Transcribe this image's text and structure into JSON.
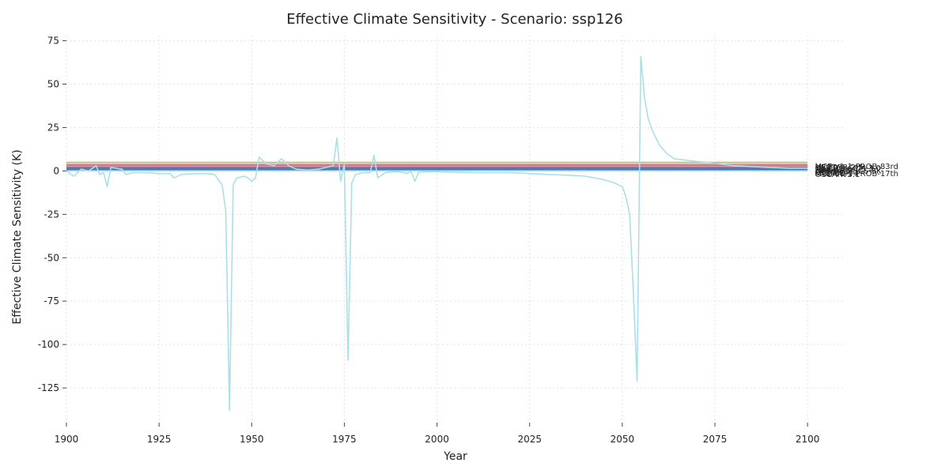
{
  "chart_data": {
    "type": "line",
    "title": "Effective Climate Sensitivity - Scenario: ssp126",
    "xlabel": "Year",
    "ylabel": "Effective Climate Sensitivity (K)",
    "xlim": [
      1900,
      2110
    ],
    "ylim": [
      -145,
      78
    ],
    "x_ticks": [
      1900,
      1925,
      1950,
      1975,
      2000,
      2025,
      2050,
      2075,
      2100
    ],
    "y_ticks": [
      75,
      50,
      25,
      0,
      -25,
      -50,
      -75,
      -100,
      -125
    ],
    "grid": true,
    "legend": "none",
    "series": [
      {
        "name": "MCE-v1-1-PROB-83rd",
        "color": "#c9b458",
        "x": [
          1900,
          2100
        ],
        "y": [
          4.9,
          4.9
        ]
      },
      {
        "name": "",
        "color": "#e07a5f",
        "x": [
          1900,
          2100
        ],
        "y": [
          3.8,
          3.8
        ]
      },
      {
        "name": "",
        "color": "#d48fb0",
        "x": [
          1900,
          2100
        ],
        "y": [
          3.3,
          3.3
        ]
      },
      {
        "name": "",
        "color": "#9b6bb3",
        "x": [
          1900,
          2100
        ],
        "y": [
          2.8,
          2.8
        ]
      },
      {
        "name": "",
        "color": "#e8a0a0",
        "x": [
          1900,
          2100
        ],
        "y": [
          2.4,
          2.4
        ]
      },
      {
        "name": "",
        "color": "#5c8fd6",
        "x": [
          1900,
          2100
        ],
        "y": [
          2.0,
          2.0
        ]
      },
      {
        "name": "",
        "color": "#7d4e9e",
        "x": [
          1900,
          2100
        ],
        "y": [
          1.7,
          1.7
        ]
      },
      {
        "name": "",
        "color": "#4aa3a0",
        "x": [
          1900,
          2100
        ],
        "y": [
          1.3,
          1.3
        ]
      },
      {
        "name": "",
        "color": "#2f6db3",
        "x": [
          1900,
          2100
        ],
        "y": [
          0.9,
          0.9
        ]
      },
      {
        "name": "",
        "color": "#6cc5c9",
        "x": [
          1900,
          2100
        ],
        "y": [
          0.3,
          0.3
        ]
      },
      {
        "name": "",
        "color": "#a9e0e8",
        "x": [
          1900,
          1902,
          1904,
          1906,
          1908,
          1909,
          1910,
          1911,
          1912,
          1915,
          1916,
          1918,
          1922,
          1925,
          1928,
          1929,
          1931,
          1935,
          1938,
          1940,
          1942,
          1943,
          1944,
          1945,
          1946,
          1948,
          1949,
          1950,
          1951,
          1952,
          1954,
          1956,
          1958,
          1960,
          1962,
          1965,
          1968,
          1970,
          1972,
          1973,
          1974,
          1975,
          1976,
          1977,
          1978,
          1980,
          1982,
          1983,
          1984,
          1986,
          1988,
          1990,
          1992,
          1993,
          1994,
          1995,
          1996,
          2000,
          2010,
          2020,
          2030,
          2036,
          2040,
          2045,
          2048,
          2050,
          2051,
          2052,
          2053,
          2054,
          2055,
          2056,
          2057,
          2058,
          2060,
          2062,
          2064,
          2066,
          2070,
          2075,
          2080,
          2085,
          2090,
          2095,
          2100
        ],
        "y": [
          0,
          -3,
          1,
          0,
          3,
          -2,
          -1,
          -9,
          2,
          1,
          -2,
          -1,
          -1,
          -1.5,
          -1.5,
          -4,
          -2,
          -1.5,
          -1.5,
          -2,
          -8,
          -23,
          -138,
          -8,
          -4,
          -3,
          -4,
          -6,
          -4,
          8,
          4,
          3,
          7,
          3,
          1,
          0.5,
          1,
          2,
          3,
          19,
          -6,
          4,
          -109,
          -7,
          -2,
          -1,
          -1,
          9,
          -4,
          -1,
          -0.5,
          -0.5,
          -1.5,
          0,
          -6,
          -1,
          -0.5,
          -0.5,
          -1,
          -1,
          -2,
          -2.5,
          -3,
          -5,
          -7,
          -9,
          -15,
          -25,
          -70,
          -121,
          66,
          42,
          30,
          24,
          15,
          10,
          7,
          6.5,
          5.5,
          4.5,
          3,
          2.5,
          2,
          1.5,
          1.5
        ]
      }
    ],
    "end_labels": [
      "MCE-v1-1-PROB-83rd",
      "HECTOR-2.5",
      "CICERO-SCM-3.0",
      "MAGICC-v7.5.3",
      "FaIR-v2.1",
      "AR5-2LM-ECS-3K",
      "GREB-v1",
      "ESCIMO-v1",
      "MCE-v1-1-PROB-17th",
      "OSCARv3.1"
    ]
  }
}
